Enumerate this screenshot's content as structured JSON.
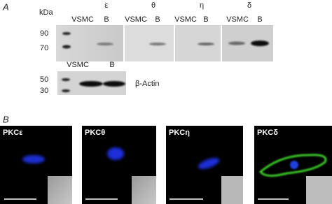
{
  "panel_a": {
    "label": "A",
    "kda": "kDa",
    "isoforms": [
      "ε",
      "θ",
      "η",
      "δ"
    ],
    "lanes": [
      [
        "VSMC",
        "B"
      ],
      [
        "VSMC",
        "B"
      ],
      [
        "VSMC",
        "B"
      ],
      [
        "VSMC",
        "B"
      ]
    ],
    "markers": [
      "90",
      "70"
    ],
    "actin": {
      "lanes": [
        "VSMC",
        "B"
      ],
      "markers": [
        "50",
        "30"
      ],
      "label": "β-Actin"
    }
  },
  "panel_b": {
    "label": "B",
    "images": [
      "PKCε",
      "PKCθ",
      "PKCη",
      "PKCδ"
    ]
  }
}
